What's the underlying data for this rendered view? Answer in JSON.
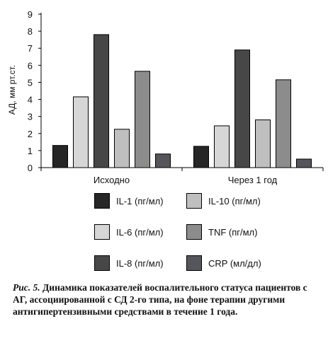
{
  "chart_data": {
    "type": "bar",
    "ylabel": "АД, мм рт.ст.",
    "ylim": [
      0,
      9
    ],
    "yticks": [
      "0",
      "1",
      "2",
      "3",
      "4",
      "5",
      "6",
      "7",
      "8",
      "9"
    ],
    "categories": [
      "Исходно",
      "Через 1 год"
    ],
    "series": [
      {
        "name": "IL-1 (пг/мл)",
        "color": "#262626",
        "values": [
          1.3,
          1.25
        ]
      },
      {
        "name": "IL-6 (пг/мл)",
        "color": "#d6d6d6",
        "values": [
          4.15,
          2.45
        ]
      },
      {
        "name": "IL-8 (пг/мл)",
        "color": "#474747",
        "values": [
          7.8,
          6.9
        ]
      },
      {
        "name": "IL-10 (пг/мл)",
        "color": "#bfbfbf",
        "values": [
          2.25,
          2.8
        ]
      },
      {
        "name": "TNF (пг/мл)",
        "color": "#8c8c8c",
        "values": [
          5.65,
          5.15
        ]
      },
      {
        "name": "CRP (мл/дл)",
        "color": "#55555c",
        "values": [
          0.8,
          0.5
        ]
      }
    ],
    "legend": "bottom"
  },
  "caption": {
    "prefix": "Рис. 5.",
    "text": " Динамика показателей воспалительного статуса пациентов с АГ, ассоциированной с СД 2-го типа, на фоне терапии другими антигипертензивными средствами в течение 1 года."
  }
}
